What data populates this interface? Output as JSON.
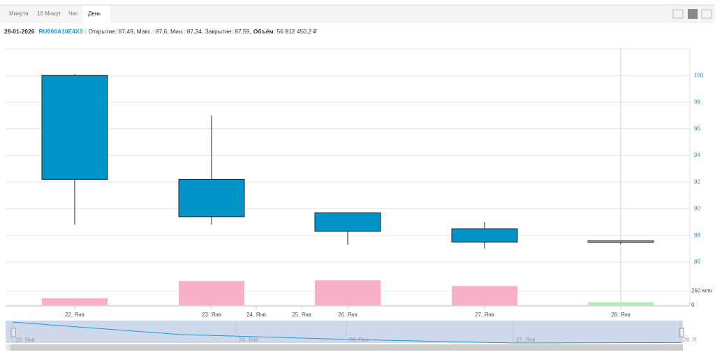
{
  "tabs": [
    "Минута",
    "10 Минут",
    "Час",
    "День"
  ],
  "info": {
    "date": "28-01-2026",
    "ticker": "RU000A10E4X3 :",
    "ohlc": "Открытие: 87,49, Макс.: 87,6, Мин.: 87,34, Закрытие: 87,59,",
    "volume_label": "Объём",
    "volume_value": ": 56 812 450,2 ₽"
  },
  "chart_data": {
    "type": "candlestick",
    "categories": [
      "22. Янв",
      "23. Янв",
      "26. Янв",
      "27. Янв",
      "28. Янв"
    ],
    "x_tick_labels": [
      "22. Янв",
      "23. Янв",
      "24. Янв",
      "25. Янв",
      "26. Янв",
      "27. Янв",
      "28. Янв"
    ],
    "open": [
      100,
      92.2,
      89.7,
      88.5,
      87.49
    ],
    "high": [
      100.1,
      97,
      89.7,
      89,
      87.6
    ],
    "low": [
      88.8,
      88.8,
      87.3,
      87,
      87.34
    ],
    "close": [
      92.2,
      89.4,
      88.3,
      87.5,
      87.59
    ],
    "volume": [
      125000000,
      425000000,
      437000000,
      337000000,
      56812450.2
    ],
    "down_color": "#0093c8",
    "up_color": "#999999",
    "volume_down_color": "#f8afc8",
    "volume_up_color": "#aef0b8",
    "ylim": [
      85,
      102
    ],
    "yticks": [
      86,
      88,
      90,
      92,
      94,
      96,
      98,
      100
    ],
    "y2lim": [
      0,
      500000000
    ],
    "y2ticks": [
      0,
      {
        "value": 250000000,
        "label": "250 млн"
      }
    ],
    "grid": true,
    "navigator_labels": [
      "22. Янв",
      "24. Янв",
      "26. Янв",
      "27. Янв",
      "28. Я"
    ]
  }
}
